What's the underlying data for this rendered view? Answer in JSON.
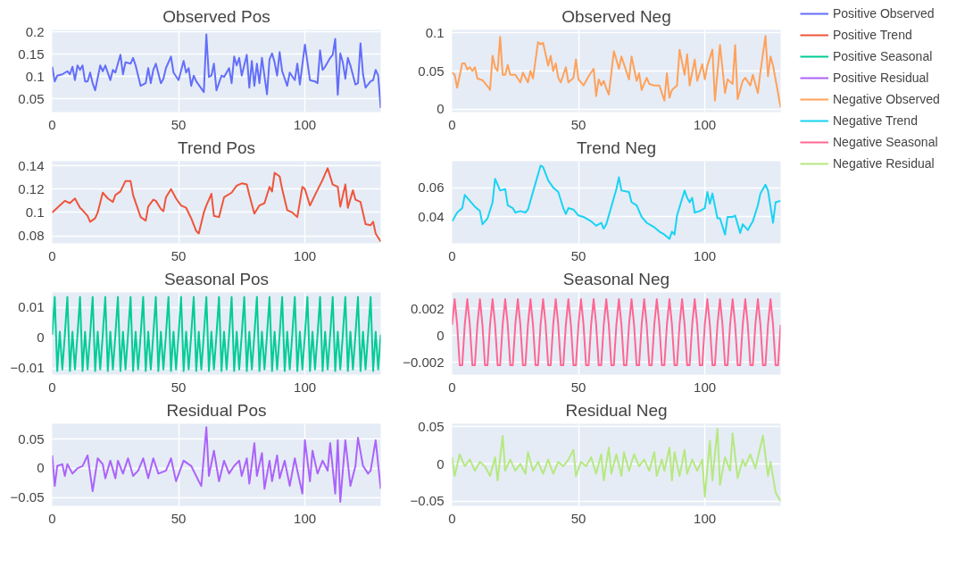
{
  "chart_data": [
    {
      "type": "line",
      "title": "Observed Pos",
      "xlim": [
        0,
        130
      ],
      "ylim": [
        0.02,
        0.205
      ],
      "xticks": [
        0,
        50,
        100
      ],
      "yticks": [
        0.05,
        0.1,
        0.15,
        0.2
      ],
      "grid": true,
      "legend": "right",
      "series": [
        {
          "name": "Positive Observed",
          "color": "#636efa",
          "x": [
            0,
            1,
            2,
            4,
            6,
            7,
            8,
            9,
            10,
            11,
            12,
            13,
            14,
            15,
            16,
            17,
            19,
            20,
            21,
            23,
            24,
            25,
            27,
            28,
            29,
            31,
            32,
            33,
            35,
            37,
            38,
            39,
            40,
            41,
            43,
            44,
            45,
            47,
            48,
            50,
            52,
            53,
            54,
            55,
            56,
            57,
            60,
            61,
            62,
            63,
            64,
            65,
            67,
            68,
            70,
            71,
            72,
            73,
            74,
            75,
            77,
            78,
            79,
            80,
            81,
            82,
            83,
            85,
            86,
            87,
            88,
            89,
            90,
            91,
            93,
            94,
            96,
            97,
            98,
            100,
            102,
            104,
            105,
            106,
            107,
            108,
            110,
            111,
            112,
            113,
            114,
            115,
            116,
            117,
            118,
            120,
            121,
            122,
            123,
            124,
            126,
            127,
            128,
            129,
            130
          ],
          "values": [
            0.122,
            0.089,
            0.102,
            0.105,
            0.112,
            0.105,
            0.122,
            0.092,
            0.125,
            0.115,
            0.125,
            0.089,
            0.089,
            0.109,
            0.085,
            0.069,
            0.125,
            0.112,
            0.125,
            0.092,
            0.115,
            0.109,
            0.149,
            0.105,
            0.132,
            0.129,
            0.142,
            0.125,
            0.079,
            0.085,
            0.119,
            0.085,
            0.115,
            0.129,
            0.085,
            0.095,
            0.119,
            0.145,
            0.109,
            0.092,
            0.135,
            0.109,
            0.119,
            0.079,
            0.102,
            0.089,
            0.065,
            0.195,
            0.099,
            0.102,
            0.129,
            0.069,
            0.102,
            0.099,
            0.119,
            0.085,
            0.145,
            0.125,
            0.142,
            0.102,
            0.149,
            0.075,
            0.135,
            0.079,
            0.129,
            0.085,
            0.142,
            0.06,
            0.139,
            0.152,
            0.132,
            0.102,
            0.155,
            0.112,
            0.079,
            0.109,
            0.092,
            0.129,
            0.082,
            0.172,
            0.092,
            0.089,
            0.085,
            0.159,
            0.115,
            0.122,
            0.142,
            0.149,
            0.185,
            0.059,
            0.152,
            0.132,
            0.095,
            0.142,
            0.125,
            0.082,
            0.085,
            0.175,
            0.105,
            0.075,
            0.089,
            0.092,
            0.115,
            0.102,
            0.029
          ]
        }
      ]
    },
    {
      "type": "line",
      "title": "Observed Neg",
      "xlim": [
        0,
        130
      ],
      "ylim": [
        -0.004,
        0.104
      ],
      "xticks": [
        0,
        50,
        100
      ],
      "yticks": [
        0,
        0.05,
        0.1
      ],
      "grid": true,
      "legend": "right",
      "series": [
        {
          "name": "Negative Observed",
          "color": "#ffa15a",
          "x": [
            0,
            1,
            2,
            4,
            5,
            6,
            7,
            8,
            9,
            10,
            12,
            14,
            15,
            16,
            17,
            18,
            19,
            20,
            21,
            22,
            23,
            25,
            27,
            28,
            30,
            31,
            32,
            34,
            35,
            36,
            38,
            39,
            40,
            41,
            42,
            43,
            45,
            46,
            48,
            49,
            50,
            52,
            54,
            56,
            57,
            58,
            59,
            60,
            61,
            62,
            64,
            65,
            66,
            67,
            70,
            71,
            73,
            74,
            75,
            77,
            78,
            80,
            82,
            84,
            85,
            86,
            87,
            89,
            90,
            92,
            93,
            94,
            96,
            97,
            99,
            100,
            101,
            103,
            104,
            106,
            108,
            109,
            111,
            112,
            113,
            115,
            116,
            118,
            119,
            121,
            122,
            124,
            125,
            126,
            127,
            130
          ],
          "values": [
            0.048,
            0.045,
            0.028,
            0.06,
            0.06,
            0.052,
            0.055,
            0.05,
            0.055,
            0.04,
            0.038,
            0.03,
            0.025,
            0.07,
            0.055,
            0.05,
            0.095,
            0.045,
            0.045,
            0.058,
            0.045,
            0.045,
            0.035,
            0.048,
            0.035,
            0.05,
            0.04,
            0.088,
            0.085,
            0.087,
            0.057,
            0.07,
            0.05,
            0.06,
            0.041,
            0.035,
            0.055,
            0.035,
            0.041,
            0.065,
            0.039,
            0.031,
            0.043,
            0.053,
            0.017,
            0.039,
            0.031,
            0.037,
            0.027,
            0.019,
            0.076,
            0.065,
            0.053,
            0.069,
            0.039,
            0.069,
            0.037,
            0.047,
            0.025,
            0.041,
            0.033,
            0.031,
            0.031,
            0.011,
            0.047,
            0.015,
            0.025,
            0.031,
            0.078,
            0.045,
            0.072,
            0.031,
            0.065,
            0.037,
            0.059,
            0.039,
            0.057,
            0.078,
            0.011,
            0.084,
            0.021,
            0.039,
            0.033,
            0.084,
            0.013,
            0.037,
            0.041,
            0.031,
            0.045,
            0.021,
            0.049,
            0.096,
            0.043,
            0.069,
            0.057,
            0.002
          ]
        }
      ]
    },
    {
      "type": "line",
      "title": "Trend Pos",
      "xlim": [
        0,
        130
      ],
      "ylim": [
        0.0735,
        0.144
      ],
      "xticks": [
        0,
        50,
        100
      ],
      "yticks": [
        0.08,
        0.1,
        0.12,
        0.14
      ],
      "grid": true,
      "legend": "right",
      "series": [
        {
          "name": "Positive Trend",
          "color": "#ef553b",
          "x": [
            0,
            2,
            4,
            5,
            7,
            9,
            11,
            12,
            14,
            15,
            17,
            18,
            20,
            22,
            24,
            25,
            27,
            29,
            31,
            32,
            35,
            37,
            38,
            40,
            41,
            43,
            44,
            45,
            47,
            49,
            51,
            53,
            55,
            57,
            58,
            60,
            61,
            63,
            64,
            66,
            68,
            71,
            73,
            75,
            77,
            78,
            80,
            82,
            84,
            86,
            87,
            88,
            90,
            91,
            93,
            95,
            97,
            99,
            100,
            102,
            104,
            107,
            109,
            111,
            113,
            114,
            116,
            117,
            119,
            120,
            122,
            124,
            126,
            127,
            128,
            130
          ],
          "values": [
            0.1,
            0.104,
            0.108,
            0.11,
            0.108,
            0.112,
            0.104,
            0.102,
            0.097,
            0.092,
            0.095,
            0.1,
            0.117,
            0.112,
            0.109,
            0.115,
            0.118,
            0.127,
            0.127,
            0.115,
            0.096,
            0.093,
            0.105,
            0.111,
            0.11,
            0.103,
            0.101,
            0.113,
            0.12,
            0.112,
            0.106,
            0.104,
            0.095,
            0.084,
            0.082,
            0.1,
            0.106,
            0.116,
            0.097,
            0.096,
            0.113,
            0.117,
            0.123,
            0.125,
            0.124,
            0.115,
            0.099,
            0.106,
            0.108,
            0.122,
            0.118,
            0.134,
            0.131,
            0.12,
            0.102,
            0.1,
            0.096,
            0.122,
            0.12,
            0.106,
            0.115,
            0.128,
            0.138,
            0.124,
            0.122,
            0.105,
            0.124,
            0.104,
            0.119,
            0.111,
            0.109,
            0.09,
            0.089,
            0.092,
            0.082,
            0.075
          ]
        }
      ]
    },
    {
      "type": "line",
      "title": "Trend Neg",
      "xlim": [
        0,
        130
      ],
      "ylim": [
        0.022,
        0.078
      ],
      "xticks": [
        0,
        50,
        100
      ],
      "yticks": [
        0.04,
        0.06
      ],
      "grid": true,
      "legend": "right",
      "series": [
        {
          "name": "Negative Trend",
          "color": "#19d3f3",
          "x": [
            0,
            2,
            4,
            5,
            7,
            9,
            11,
            12,
            14,
            16,
            17,
            19,
            21,
            22,
            24,
            25,
            27,
            29,
            30,
            33,
            35,
            36,
            38,
            40,
            42,
            44,
            45,
            46,
            48,
            50,
            52,
            54,
            55,
            57,
            59,
            60,
            61,
            63,
            65,
            66,
            67,
            70,
            71,
            73,
            75,
            77,
            79,
            80,
            82,
            84,
            86,
            87,
            88,
            89,
            92,
            93,
            94,
            95,
            96,
            98,
            100,
            101,
            102,
            103,
            105,
            106,
            108,
            109,
            111,
            112,
            114,
            115,
            117,
            119,
            121,
            122,
            124,
            125,
            127,
            128,
            130
          ],
          "values": [
            0.037,
            0.043,
            0.046,
            0.055,
            0.051,
            0.047,
            0.044,
            0.035,
            0.039,
            0.05,
            0.066,
            0.058,
            0.059,
            0.048,
            0.046,
            0.043,
            0.044,
            0.043,
            0.045,
            0.063,
            0.075,
            0.074,
            0.065,
            0.06,
            0.057,
            0.046,
            0.042,
            0.046,
            0.045,
            0.041,
            0.04,
            0.038,
            0.037,
            0.034,
            0.036,
            0.032,
            0.035,
            0.047,
            0.059,
            0.067,
            0.058,
            0.057,
            0.05,
            0.048,
            0.04,
            0.036,
            0.034,
            0.033,
            0.03,
            0.028,
            0.025,
            0.03,
            0.028,
            0.041,
            0.058,
            0.053,
            0.05,
            0.053,
            0.043,
            0.044,
            0.046,
            0.057,
            0.049,
            0.056,
            0.039,
            0.039,
            0.028,
            0.04,
            0.04,
            0.041,
            0.029,
            0.035,
            0.031,
            0.037,
            0.048,
            0.056,
            0.062,
            0.058,
            0.036,
            0.05,
            0.051
          ]
        }
      ]
    },
    {
      "type": "line",
      "title": "Seasonal Pos",
      "xlim": [
        0,
        130
      ],
      "ylim": [
        -0.0122,
        0.015
      ],
      "xticks": [
        0,
        50,
        100
      ],
      "yticks": [
        {
          "value": -0.01,
          "label": "−0.01"
        },
        0,
        0.01
      ],
      "grid": true,
      "legend": "right",
      "series": [
        {
          "name": "Positive Seasonal",
          "color": "#00cc96",
          "x": [
            0,
            1,
            2,
            3,
            4,
            5,
            6,
            7,
            8,
            9,
            10,
            11,
            12,
            13,
            14,
            15,
            16,
            17,
            18,
            19,
            20,
            21,
            22,
            23,
            24,
            25,
            26,
            27,
            28,
            29,
            30,
            31,
            32,
            33,
            34,
            35,
            36,
            37,
            38,
            39,
            40,
            41,
            42,
            43,
            44,
            45,
            46,
            47,
            48,
            49,
            50,
            51,
            52,
            53,
            54,
            55,
            56,
            57,
            58,
            59,
            60,
            61,
            62,
            63,
            64,
            65,
            66,
            67,
            68,
            69,
            70,
            71,
            72,
            73,
            74,
            75,
            76,
            77,
            78,
            79,
            80,
            81,
            82,
            83,
            84,
            85,
            86,
            87,
            88,
            89,
            90,
            91,
            92,
            93,
            94,
            95,
            96,
            97,
            98,
            99,
            100,
            101,
            102,
            103,
            104,
            105,
            106,
            107,
            108,
            109,
            110,
            111,
            112,
            113,
            114,
            115,
            116,
            117,
            118,
            119,
            120,
            121,
            122,
            123,
            124,
            125,
            126,
            127,
            128,
            129,
            130
          ],
          "values": [
            0.001,
            0.0135,
            -0.011,
            0.002,
            -0.0105,
            0.001,
            0.0135,
            -0.011,
            0.002,
            -0.0105,
            0.001,
            0.0135,
            -0.011,
            0.002,
            -0.0105,
            0.001,
            0.0135,
            -0.011,
            0.002,
            -0.0105,
            0.001,
            0.0135,
            -0.011,
            0.002,
            -0.0105,
            0.001,
            0.0135,
            -0.011,
            0.002,
            -0.0105,
            0.001,
            0.0135,
            -0.011,
            0.002,
            -0.0105,
            0.001,
            0.0135,
            -0.011,
            0.002,
            -0.0105,
            0.001,
            0.0135,
            -0.011,
            0.002,
            -0.0105,
            0.001,
            0.0135,
            -0.011,
            0.002,
            -0.0105,
            0.001,
            0.0135,
            -0.011,
            0.002,
            -0.0105,
            0.001,
            0.0135,
            -0.011,
            0.002,
            -0.0105,
            0.001,
            0.0135,
            -0.011,
            0.002,
            -0.0105,
            0.001,
            0.0135,
            -0.011,
            0.002,
            -0.0105,
            0.001,
            0.0135,
            -0.011,
            0.002,
            -0.0105,
            0.001,
            0.0135,
            -0.011,
            0.002,
            -0.0105,
            0.001,
            0.0135,
            -0.011,
            0.002,
            -0.0105,
            0.001,
            0.0135,
            -0.011,
            0.002,
            -0.0105,
            0.001,
            0.0135,
            -0.011,
            0.002,
            -0.0105,
            0.001,
            0.0135,
            -0.011,
            0.002,
            -0.0105,
            0.001,
            0.0135,
            -0.011,
            0.002,
            -0.0105,
            0.001,
            0.0135,
            -0.011,
            0.002,
            -0.0105,
            0.001,
            0.0135,
            -0.011,
            0.002,
            -0.0105,
            0.001,
            0.0135,
            -0.011,
            0.002,
            -0.0105,
            0.001,
            0.0135,
            -0.011,
            0.002,
            -0.0105,
            0.001,
            0.0135,
            -0.011,
            0.002,
            -0.0105,
            0.001
          ]
        }
      ]
    },
    {
      "type": "line",
      "title": "Seasonal Neg",
      "xlim": [
        0,
        130
      ],
      "ylim": [
        -0.0029,
        0.0032
      ],
      "xticks": [
        0,
        50,
        100
      ],
      "yticks": [
        {
          "value": -0.002,
          "label": "−0.002"
        },
        0,
        0.002
      ],
      "grid": true,
      "legend": "right",
      "series": [
        {
          "name": "Negative Seasonal",
          "color": "#ff6692",
          "x": [
            0,
            1,
            2,
            3,
            4,
            5,
            6,
            7,
            8,
            9,
            10,
            11,
            12,
            13,
            14,
            15,
            16,
            17,
            18,
            19,
            20,
            21,
            22,
            23,
            24,
            25,
            26,
            27,
            28,
            29,
            30,
            31,
            32,
            33,
            34,
            35,
            36,
            37,
            38,
            39,
            40,
            41,
            42,
            43,
            44,
            45,
            46,
            47,
            48,
            49,
            50,
            51,
            52,
            53,
            54,
            55,
            56,
            57,
            58,
            59,
            60,
            61,
            62,
            63,
            64,
            65,
            66,
            67,
            68,
            69,
            70,
            71,
            72,
            73,
            74,
            75,
            76,
            77,
            78,
            79,
            80,
            81,
            82,
            83,
            84,
            85,
            86,
            87,
            88,
            89,
            90,
            91,
            92,
            93,
            94,
            95,
            96,
            97,
            98,
            99,
            100,
            101,
            102,
            103,
            104,
            105,
            106,
            107,
            108,
            109,
            110,
            111,
            112,
            113,
            114,
            115,
            116,
            117,
            118,
            119,
            120,
            121,
            122,
            123,
            124,
            125,
            126,
            127,
            128,
            129,
            130
          ],
          "values": [
            0.0008,
            0.0027,
            0.0008,
            -0.0022,
            -0.0022,
            0.0008,
            0.0027,
            0.0008,
            -0.0022,
            -0.0022,
            0.0008,
            0.0027,
            0.0008,
            -0.0022,
            -0.0022,
            0.0008,
            0.0027,
            0.0008,
            -0.0022,
            -0.0022,
            0.0008,
            0.0027,
            0.0008,
            -0.0022,
            -0.0022,
            0.0008,
            0.0027,
            0.0008,
            -0.0022,
            -0.0022,
            0.0008,
            0.0027,
            0.0008,
            -0.0022,
            -0.0022,
            0.0008,
            0.0027,
            0.0008,
            -0.0022,
            -0.0022,
            0.0008,
            0.0027,
            0.0008,
            -0.0022,
            -0.0022,
            0.0008,
            0.0027,
            0.0008,
            -0.0022,
            -0.0022,
            0.0008,
            0.0027,
            0.0008,
            -0.0022,
            -0.0022,
            0.0008,
            0.0027,
            0.0008,
            -0.0022,
            -0.0022,
            0.0008,
            0.0027,
            0.0008,
            -0.0022,
            -0.0022,
            0.0008,
            0.0027,
            0.0008,
            -0.0022,
            -0.0022,
            0.0008,
            0.0027,
            0.0008,
            -0.0022,
            -0.0022,
            0.0008,
            0.0027,
            0.0008,
            -0.0022,
            -0.0022,
            0.0008,
            0.0027,
            0.0008,
            -0.0022,
            -0.0022,
            0.0008,
            0.0027,
            0.0008,
            -0.0022,
            -0.0022,
            0.0008,
            0.0027,
            0.0008,
            -0.0022,
            -0.0022,
            0.0008,
            0.0027,
            0.0008,
            -0.0022,
            -0.0022,
            0.0008,
            0.0027,
            0.0008,
            -0.0022,
            -0.0022,
            0.0008,
            0.0027,
            0.0008,
            -0.0022,
            -0.0022,
            0.0008,
            0.0027,
            0.0008,
            -0.0022,
            -0.0022,
            0.0008,
            0.0027,
            0.0008,
            -0.0022,
            -0.0022,
            0.0008,
            0.0027,
            0.0008,
            -0.0022,
            -0.0022,
            0.0008,
            0.0027,
            0.0008,
            -0.0022,
            -0.0022,
            0.0008
          ]
        }
      ]
    },
    {
      "type": "line",
      "title": "Residual Pos",
      "xlim": [
        0,
        130
      ],
      "ylim": [
        -0.064,
        0.076
      ],
      "xticks": [
        0,
        50,
        100
      ],
      "yticks": [
        {
          "value": -0.05,
          "label": "−0.05"
        },
        0,
        0.05
      ],
      "grid": true,
      "legend": "right",
      "series": [
        {
          "name": "Positive Residual",
          "color": "#ab63fa",
          "x": [
            0,
            1,
            2,
            4,
            5,
            6,
            8,
            10,
            12,
            14,
            16,
            18,
            20,
            21,
            23,
            25,
            26,
            28,
            30,
            32,
            34,
            36,
            38,
            40,
            42,
            45,
            47,
            49,
            52,
            55,
            58,
            59,
            61,
            62,
            64,
            66,
            68,
            70,
            72,
            74,
            75,
            77,
            78,
            80,
            81,
            83,
            84,
            86,
            87,
            89,
            90,
            92,
            94,
            96,
            97,
            99,
            100,
            102,
            103,
            105,
            107,
            109,
            110,
            112,
            113,
            114,
            116,
            118,
            120,
            121,
            123,
            125,
            126,
            128,
            130
          ],
          "values": [
            0.022,
            -0.03,
            0.004,
            0.007,
            -0.013,
            0.007,
            -0.009,
            0,
            0.004,
            0.022,
            -0.039,
            0.017,
            0.007,
            -0.017,
            0.013,
            -0.017,
            0.013,
            -0.009,
            0.017,
            -0.013,
            -0.004,
            0.017,
            -0.017,
            0.017,
            -0.009,
            -0.004,
            0.017,
            -0.022,
            0.013,
            0.004,
            -0.022,
            -0.03,
            0.07,
            -0.013,
            0.03,
            -0.022,
            0.013,
            -0.009,
            0.004,
            0.013,
            -0.013,
            0.017,
            -0.026,
            0.043,
            -0.013,
            0.026,
            -0.035,
            0.013,
            -0.022,
            0.022,
            -0.017,
            0.013,
            -0.03,
            0.017,
            -0.004,
            -0.043,
            0.048,
            -0.022,
            0.03,
            -0.009,
            0.013,
            -0.004,
            0.043,
            -0.043,
            0.048,
            -0.057,
            0.048,
            -0.03,
            0.004,
            0.052,
            0.004,
            -0.009,
            -0.004,
            0.048,
            -0.035
          ]
        }
      ]
    },
    {
      "type": "line",
      "title": "Residual Neg",
      "xlim": [
        0,
        130
      ],
      "ylim": [
        -0.056,
        0.054
      ],
      "xticks": [
        0,
        50,
        100
      ],
      "yticks": [
        {
          "value": -0.05,
          "label": "−0.05"
        },
        0,
        0.05
      ],
      "grid": true,
      "legend": "right",
      "series": [
        {
          "name": "Negative Residual",
          "color": "#b6e880",
          "x": [
            0,
            1,
            3,
            5,
            7,
            9,
            11,
            13,
            15,
            17,
            18,
            20,
            21,
            23,
            25,
            27,
            29,
            30,
            32,
            34,
            36,
            38,
            40,
            42,
            44,
            46,
            48,
            49,
            51,
            53,
            55,
            57,
            59,
            60,
            62,
            63,
            65,
            67,
            68,
            70,
            72,
            74,
            76,
            78,
            80,
            81,
            83,
            84,
            86,
            87,
            88,
            90,
            92,
            93,
            95,
            97,
            99,
            100,
            102,
            103,
            105,
            106,
            108,
            110,
            111,
            113,
            115,
            116,
            118,
            120,
            121,
            123,
            125,
            126,
            128,
            130
          ],
          "values": [
            0.009,
            -0.016,
            0.013,
            -0.003,
            0.006,
            -0.009,
            0.003,
            -0.003,
            -0.016,
            0.009,
            -0.022,
            0.038,
            -0.009,
            0.006,
            -0.009,
            0,
            -0.013,
            0.016,
            -0.009,
            0.003,
            -0.013,
            0.006,
            -0.013,
            0.003,
            -0.003,
            0.006,
            0.019,
            -0.016,
            0.003,
            -0.003,
            0.009,
            -0.013,
            0.013,
            -0.022,
            0.022,
            -0.013,
            0.013,
            -0.016,
            0.016,
            -0.009,
            0.013,
            -0.003,
            0.006,
            -0.009,
            0.016,
            -0.016,
            0.006,
            -0.009,
            0.022,
            -0.022,
            0.016,
            -0.016,
            0.019,
            -0.013,
            0.006,
            -0.009,
            0.006,
            -0.044,
            0.031,
            -0.022,
            0.047,
            -0.028,
            0.009,
            -0.009,
            0.041,
            -0.019,
            0.006,
            -0.003,
            0.013,
            -0.006,
            0.009,
            0.038,
            -0.016,
            0.003,
            -0.038,
            -0.05
          ]
        }
      ]
    }
  ]
}
